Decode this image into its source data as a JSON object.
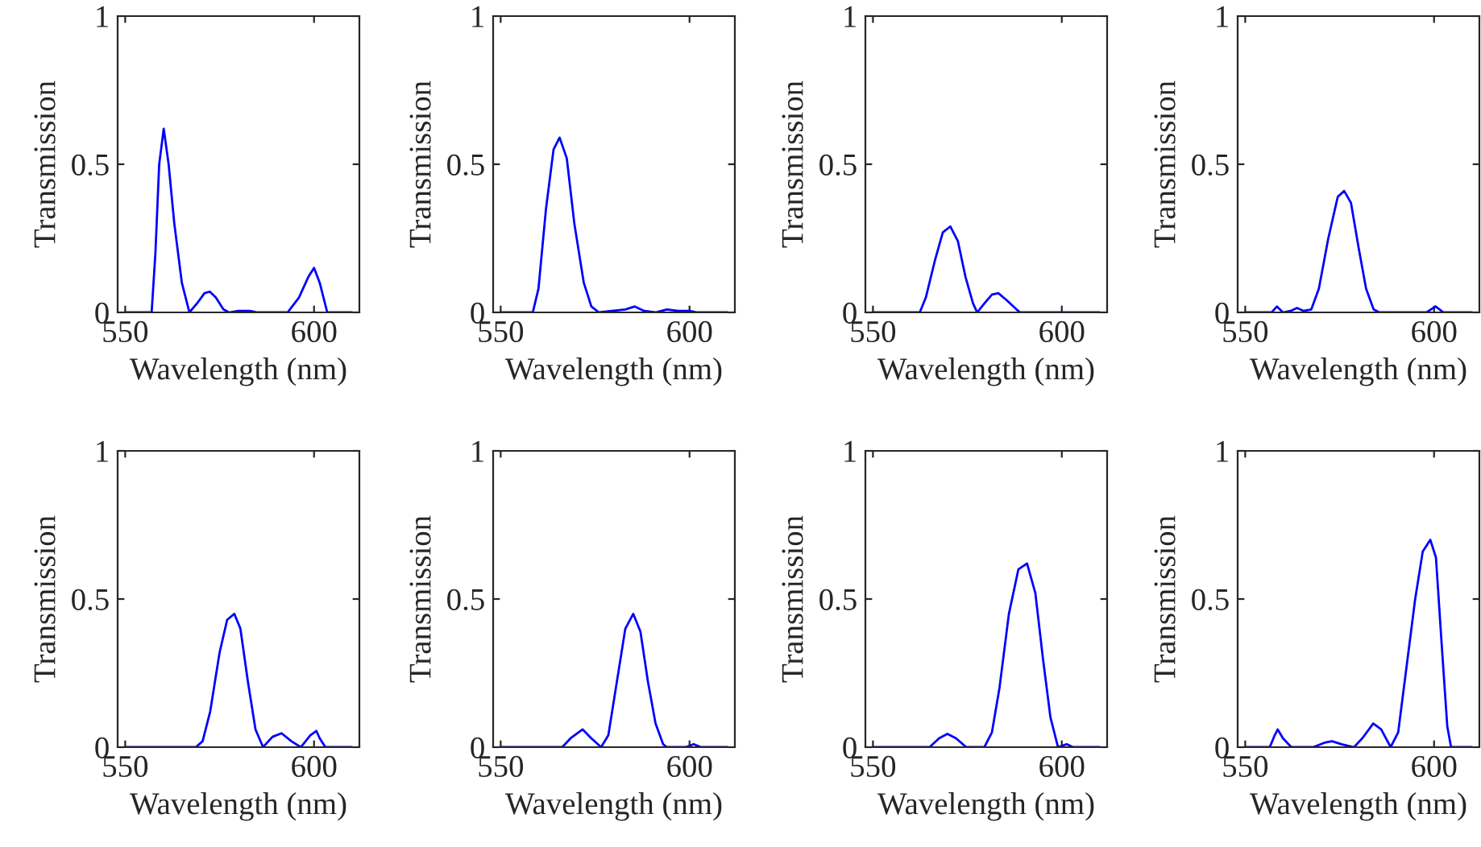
{
  "chart_data": [
    {
      "type": "line",
      "xlabel": "Wavelength (nm)",
      "ylabel": "Transmission",
      "xlim": [
        548,
        612
      ],
      "ylim": [
        0,
        1
      ],
      "xticks": [
        550,
        600
      ],
      "yticks": [
        0,
        0.5,
        1
      ],
      "series": [
        {
          "color": "#0000ff",
          "x": [
            550,
            557,
            558,
            559,
            560.2,
            561.5,
            563,
            565,
            567,
            569,
            571,
            572.4,
            574,
            576,
            577.5,
            580,
            583,
            585,
            593,
            596,
            598.5,
            600,
            601.5,
            603.5,
            610
          ],
          "values": [
            0,
            0,
            0.2,
            0.5,
            0.62,
            0.5,
            0.3,
            0.1,
            0,
            0.03,
            0.065,
            0.07,
            0.05,
            0.01,
            0,
            0.005,
            0.005,
            0,
            0,
            0.05,
            0.12,
            0.15,
            0.1,
            0,
            0
          ]
        }
      ]
    },
    {
      "type": "line",
      "xlabel": "Wavelength (nm)",
      "ylabel": "Transmission",
      "xlim": [
        548,
        612
      ],
      "ylim": [
        0,
        1
      ],
      "xticks": [
        550,
        600
      ],
      "yticks": [
        0,
        0.5,
        1
      ],
      "series": [
        {
          "color": "#0000ff",
          "x": [
            550,
            558.5,
            560,
            562,
            564,
            565.6,
            567.5,
            569.5,
            572,
            574,
            576,
            583,
            585.5,
            588,
            591,
            594,
            597,
            600,
            602,
            610
          ],
          "values": [
            0,
            0,
            0.08,
            0.35,
            0.55,
            0.59,
            0.52,
            0.3,
            0.1,
            0.02,
            0,
            0.01,
            0.02,
            0.005,
            0,
            0.01,
            0.005,
            0.005,
            0,
            0
          ]
        }
      ]
    },
    {
      "type": "line",
      "xlabel": "Wavelength (nm)",
      "ylabel": "Transmission",
      "xlim": [
        548,
        612
      ],
      "ylim": [
        0,
        1
      ],
      "xticks": [
        550,
        600
      ],
      "yticks": [
        0,
        0.5,
        1
      ],
      "series": [
        {
          "color": "#0000ff",
          "x": [
            550,
            562.4,
            564,
            566.5,
            568.5,
            570.5,
            572.5,
            574.5,
            576.5,
            577.6,
            579.5,
            581.5,
            583.2,
            585.5,
            588,
            589,
            610
          ],
          "values": [
            0,
            0,
            0.05,
            0.18,
            0.27,
            0.29,
            0.24,
            0.12,
            0.03,
            0,
            0.03,
            0.06,
            0.065,
            0.04,
            0.01,
            0,
            0
          ]
        }
      ]
    },
    {
      "type": "line",
      "xlabel": "Wavelength (nm)",
      "ylabel": "Transmission",
      "xlim": [
        548,
        612
      ],
      "ylim": [
        0,
        1
      ],
      "xticks": [
        550,
        600
      ],
      "yticks": [
        0,
        0.5,
        1
      ],
      "series": [
        {
          "color": "#0000ff",
          "x": [
            550,
            557,
            558.4,
            560,
            562,
            563.7,
            565.5,
            567.5,
            569.5,
            572,
            574.5,
            576.2,
            578,
            580,
            582,
            584,
            585.5,
            598,
            600.4,
            602.5,
            610
          ],
          "values": [
            0,
            0,
            0.02,
            0,
            0.005,
            0.015,
            0.005,
            0.01,
            0.08,
            0.25,
            0.39,
            0.41,
            0.37,
            0.22,
            0.08,
            0.01,
            0,
            0,
            0.02,
            0,
            0
          ]
        }
      ]
    },
    {
      "type": "line",
      "xlabel": "Wavelength (nm)",
      "ylabel": "Transmission",
      "xlim": [
        548,
        612
      ],
      "ylim": [
        0,
        1
      ],
      "xticks": [
        550,
        600
      ],
      "yticks": [
        0,
        0.5,
        1
      ],
      "series": [
        {
          "color": "#0000ff",
          "x": [
            550,
            568.7,
            570.5,
            572.5,
            575,
            577,
            578.9,
            580.5,
            582.5,
            584.5,
            586.5,
            589,
            591.4,
            594,
            596.5,
            599,
            600.6,
            601.5,
            603,
            610
          ],
          "values": [
            0,
            0,
            0.02,
            0.12,
            0.32,
            0.43,
            0.45,
            0.4,
            0.22,
            0.06,
            0,
            0.035,
            0.047,
            0.02,
            0,
            0.04,
            0.055,
            0.03,
            0,
            0
          ]
        }
      ]
    },
    {
      "type": "line",
      "xlabel": "Wavelength (nm)",
      "ylabel": "Transmission",
      "xlim": [
        548,
        612
      ],
      "ylim": [
        0,
        1
      ],
      "xticks": [
        550,
        600
      ],
      "yticks": [
        0,
        0.5,
        1
      ],
      "series": [
        {
          "color": "#0000ff",
          "x": [
            550,
            566.3,
            568.5,
            571.7,
            574,
            576.6,
            578.5,
            580.5,
            583,
            585.1,
            587,
            589,
            591,
            593,
            594,
            599,
            601.1,
            603,
            610
          ],
          "values": [
            0,
            0,
            0.03,
            0.06,
            0.03,
            0,
            0.04,
            0.2,
            0.4,
            0.45,
            0.39,
            0.22,
            0.08,
            0.01,
            0,
            0,
            0.01,
            0,
            0
          ]
        }
      ]
    },
    {
      "type": "line",
      "xlabel": "Wavelength (nm)",
      "ylabel": "Transmission",
      "xlim": [
        548,
        612
      ],
      "ylim": [
        0,
        1
      ],
      "xticks": [
        550,
        600
      ],
      "yticks": [
        0,
        0.5,
        1
      ],
      "series": [
        {
          "color": "#0000ff",
          "x": [
            550,
            565,
            567.5,
            569.7,
            572,
            574.7,
            579.5,
            581.5,
            583.5,
            586,
            588.5,
            590.8,
            593,
            595,
            597,
            599,
            601.3,
            603,
            610
          ],
          "values": [
            0,
            0,
            0.03,
            0.045,
            0.03,
            0,
            0,
            0.05,
            0.2,
            0.45,
            0.6,
            0.62,
            0.52,
            0.3,
            0.1,
            0,
            0.01,
            0,
            0
          ]
        }
      ]
    },
    {
      "type": "line",
      "xlabel": "Wavelength (nm)",
      "ylabel": "Transmission",
      "xlim": [
        548,
        612
      ],
      "ylim": [
        0,
        1
      ],
      "xticks": [
        550,
        600
      ],
      "yticks": [
        0,
        0.5,
        1
      ],
      "series": [
        {
          "color": "#0000ff",
          "x": [
            550,
            556.5,
            557.8,
            558.6,
            560,
            562.2,
            568,
            571,
            573,
            575.5,
            578.8,
            581,
            583.9,
            586,
            588.5,
            590.5,
            592.5,
            595,
            597,
            599,
            600.5,
            602,
            603.5,
            604.5,
            610
          ],
          "values": [
            0,
            0,
            0.04,
            0.06,
            0.03,
            0,
            0,
            0.015,
            0.02,
            0.01,
            0,
            0.03,
            0.08,
            0.06,
            0,
            0.05,
            0.25,
            0.5,
            0.66,
            0.7,
            0.64,
            0.35,
            0.07,
            0,
            0
          ]
        }
      ]
    }
  ]
}
